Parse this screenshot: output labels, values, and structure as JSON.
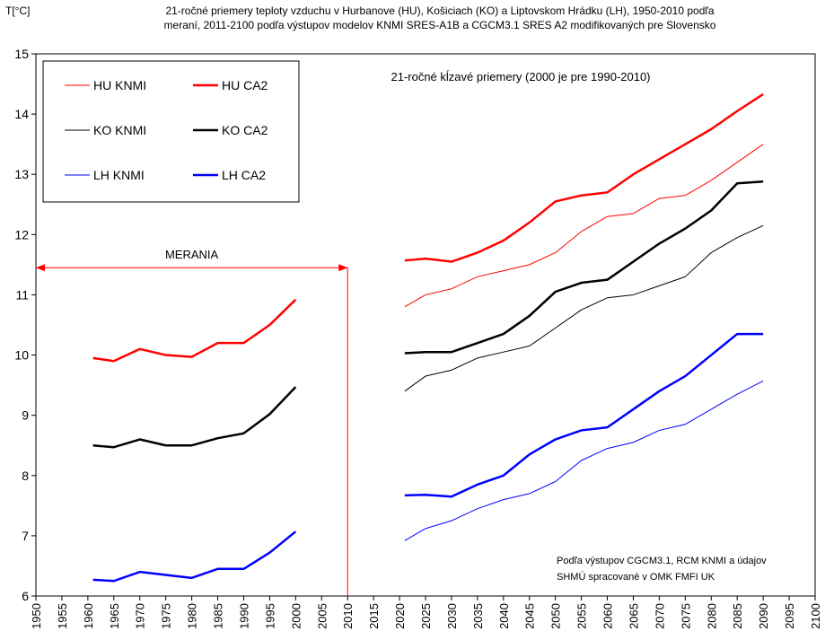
{
  "chart_data": {
    "type": "line",
    "y_label": "T[°C]",
    "title": [
      "21-ročné priemery teploty vzduchu v Hurbanove (HU), Košiciach (KO) a Liptovskom Hrádku (LH), 1950-2010 podľa",
      "meraní, 2011-2100 podľa výstupov modelov KNMI SRES-A1B a CGCM3.1 SRES A2 modifikovaných pre Slovensko"
    ],
    "subtitle": "21-ročné kĺzavé priemery (2000 je pre 1990-2010)",
    "note": [
      "Podľa výstupov CGCM3.1, RCM KNMI a údajov",
      "SHMÚ spracované v OMK FMFI UK"
    ],
    "annotation": {
      "text": "MERANIA",
      "x": [
        1950,
        2010
      ],
      "y": 11.45
    },
    "x": [
      1961,
      1965,
      1970,
      1975,
      1980,
      1985,
      1990,
      1995,
      2000,
      2010,
      2021,
      2025,
      2030,
      2035,
      2040,
      2045,
      2050,
      2055,
      2060,
      2065,
      2070,
      2075,
      2080,
      2085,
      2090
    ],
    "series": [
      {
        "name": "HU KNMI",
        "color": "#ff0000",
        "width": 1,
        "values": [
          null,
          null,
          null,
          null,
          null,
          null,
          null,
          null,
          null,
          null,
          10.8,
          11.0,
          11.1,
          11.3,
          11.4,
          11.5,
          11.7,
          12.05,
          12.3,
          12.35,
          12.6,
          12.65,
          12.9,
          13.2,
          13.5
        ]
      },
      {
        "name": "HU CA2",
        "color": "#ff0000",
        "width": 2.5,
        "values": [
          9.95,
          9.9,
          10.1,
          10.0,
          9.97,
          10.2,
          10.2,
          10.5,
          10.92,
          null,
          11.57,
          11.6,
          11.55,
          11.7,
          11.9,
          12.2,
          12.55,
          12.65,
          12.7,
          13.0,
          13.25,
          13.5,
          13.75,
          14.05,
          14.33
        ]
      },
      {
        "name": "KO KNMI",
        "color": "#000000",
        "width": 1,
        "values": [
          null,
          null,
          null,
          null,
          null,
          null,
          null,
          null,
          null,
          null,
          9.4,
          9.65,
          9.75,
          9.95,
          10.05,
          10.15,
          10.45,
          10.75,
          10.95,
          11.0,
          11.15,
          11.3,
          11.7,
          11.95,
          12.15
        ]
      },
      {
        "name": "KO CA2",
        "color": "#000000",
        "width": 2.5,
        "values": [
          8.5,
          8.47,
          8.6,
          8.5,
          8.5,
          8.62,
          8.7,
          9.02,
          9.47,
          null,
          10.03,
          10.05,
          10.05,
          10.2,
          10.35,
          10.65,
          11.05,
          11.2,
          11.25,
          11.55,
          11.85,
          12.1,
          12.4,
          12.85,
          12.88
        ]
      },
      {
        "name": "LH KNMI",
        "color": "#0000ff",
        "width": 1,
        "values": [
          null,
          null,
          null,
          null,
          null,
          null,
          null,
          null,
          null,
          null,
          6.92,
          7.12,
          7.25,
          7.45,
          7.6,
          7.7,
          7.9,
          8.25,
          8.45,
          8.55,
          8.75,
          8.85,
          9.1,
          9.35,
          9.57
        ]
      },
      {
        "name": "LH CA2",
        "color": "#0000ff",
        "width": 2.5,
        "values": [
          6.27,
          6.25,
          6.4,
          6.35,
          6.3,
          6.45,
          6.45,
          6.72,
          7.07,
          null,
          7.67,
          7.68,
          7.65,
          7.85,
          8.0,
          8.35,
          8.6,
          8.75,
          8.8,
          9.1,
          9.4,
          9.65,
          10.0,
          10.35,
          10.35
        ]
      }
    ],
    "xlim": [
      1950,
      2100
    ],
    "xticks": [
      1950,
      1955,
      1960,
      1965,
      1970,
      1975,
      1980,
      1985,
      1990,
      1995,
      2000,
      2005,
      2010,
      2015,
      2020,
      2025,
      2030,
      2035,
      2040,
      2045,
      2050,
      2055,
      2060,
      2065,
      2070,
      2075,
      2080,
      2085,
      2090,
      2095,
      2100
    ],
    "ylim": [
      6,
      15
    ],
    "yticks": [
      6,
      7,
      8,
      9,
      10,
      11,
      12,
      13,
      14,
      15
    ],
    "grid": false
  }
}
